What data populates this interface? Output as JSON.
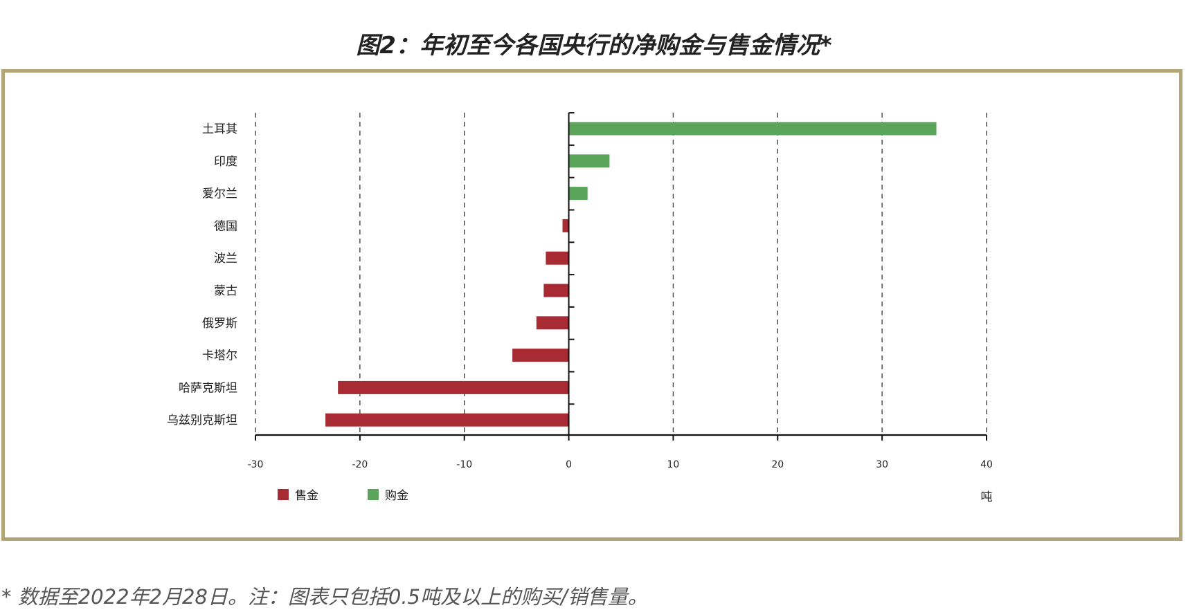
{
  "title": "图2：年初至今各国央行的净购金与售金情况*",
  "footnote": "* 数据至2022年2月28日。注：图表只包括0.5吨及以上的购买/销售量。",
  "colors": {
    "sell": "#a82a32",
    "buy": "#5aa55a",
    "frame": "#b2a676"
  },
  "chart_data": {
    "type": "bar",
    "orientation": "horizontal",
    "categories": [
      "土耳其",
      "印度",
      "爱尔兰",
      "德国",
      "波兰",
      "蒙古",
      "俄罗斯",
      "卡塔尔",
      "哈萨克斯坦",
      "乌兹别克斯坦"
    ],
    "values": [
      35.2,
      3.9,
      1.8,
      -0.6,
      -2.2,
      -2.4,
      -3.1,
      -5.4,
      -22.1,
      -23.3
    ],
    "xlim": [
      -30,
      40
    ],
    "xticks": [
      -30,
      -20,
      -10,
      0,
      10,
      20,
      30,
      40
    ],
    "xlabel": "吨",
    "grid": "vertical-dashed",
    "legend": {
      "position": "bottom-left",
      "entries": [
        {
          "name": "售金",
          "color": "#a82a32"
        },
        {
          "name": "购金",
          "color": "#5aa55a"
        }
      ]
    }
  }
}
